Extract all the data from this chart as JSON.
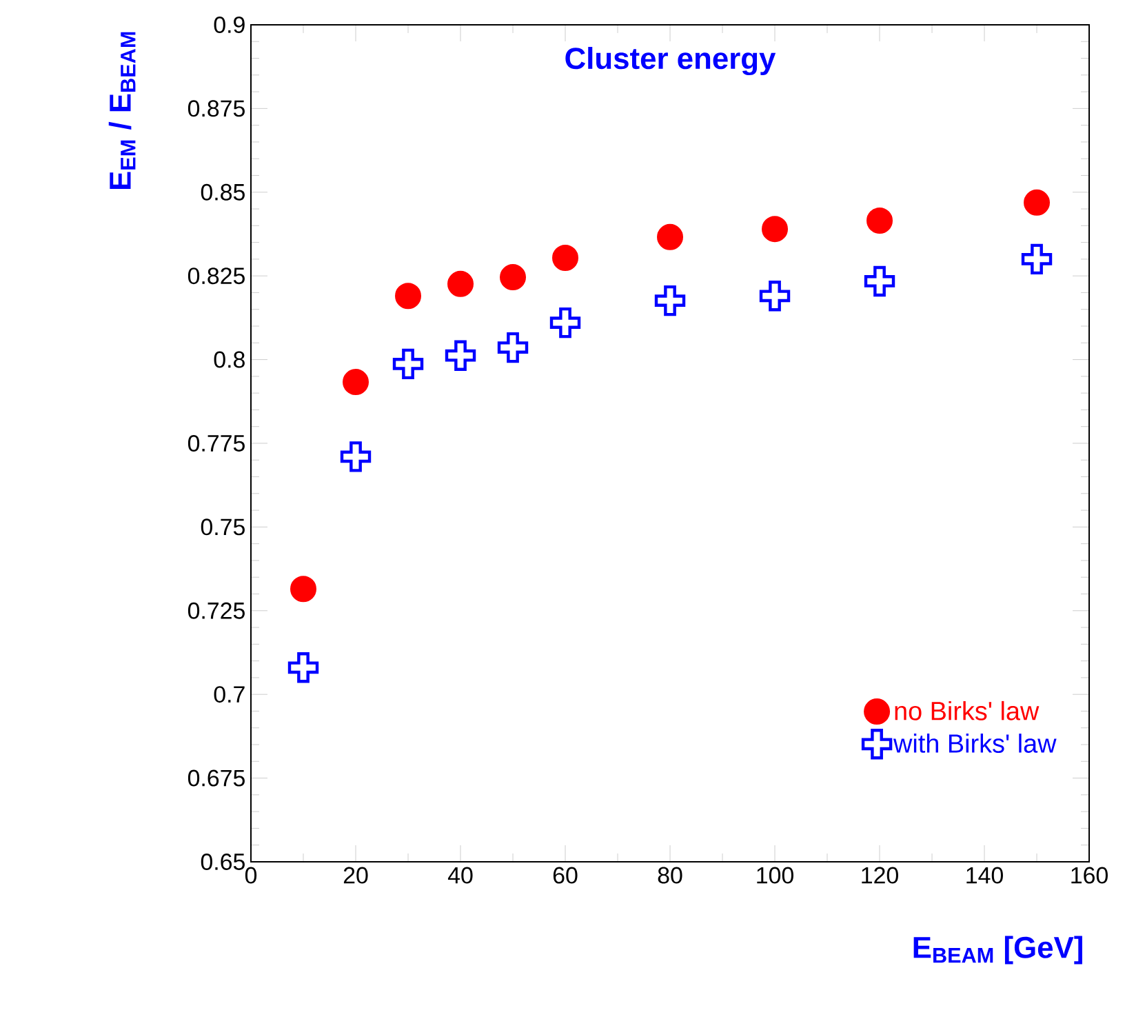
{
  "chart_data": {
    "type": "scatter",
    "title": "Cluster energy",
    "xlabel": "E$_{BEAM}$  [GeV]",
    "ylabel": "E$_{EM}$ / E$_{BEAM}$",
    "x": [
      10,
      20,
      30,
      40,
      50,
      60,
      80,
      100,
      120,
      150
    ],
    "series": [
      {
        "name": "no Birks' law",
        "color": "#ff0000",
        "marker": "circle",
        "values": [
          0.7315,
          0.7933,
          0.819,
          0.8226,
          0.8246,
          0.8304,
          0.8366,
          0.839,
          0.8415,
          0.8469
        ]
      },
      {
        "name": "with Birks' law",
        "color": "#0000ff",
        "marker": "cross",
        "values": [
          0.708,
          0.771,
          0.7987,
          0.8012,
          0.8036,
          0.811,
          0.8176,
          0.819,
          0.8234,
          0.83
        ]
      }
    ],
    "xlim": [
      0,
      160
    ],
    "xticks": [
      0,
      20,
      40,
      60,
      80,
      100,
      120,
      140,
      160
    ],
    "ylim": [
      0.65,
      0.9
    ],
    "yticks": [
      0.65,
      0.675,
      0.7,
      0.725,
      0.75,
      0.775,
      0.8,
      0.825,
      0.85,
      0.875,
      0.9
    ],
    "legend": "bottom right"
  }
}
